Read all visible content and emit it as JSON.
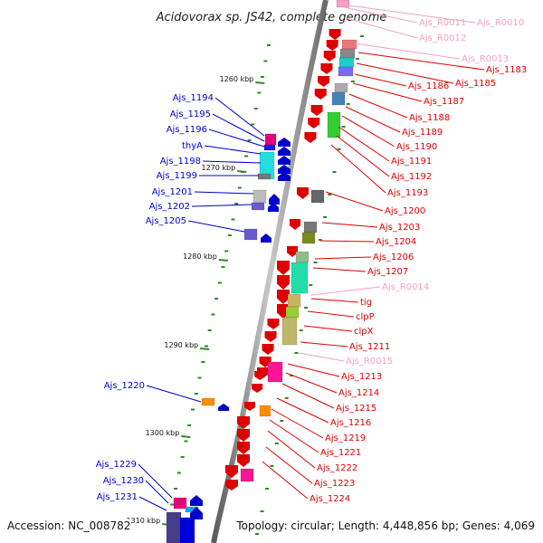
{
  "title": "Acidovorax sp. JS42, complete genome",
  "accession": "Accession: NC_008782",
  "topology": "Topology: circular; Length: 4,448,856 bp; Genes: 4,069",
  "colors": {
    "rna": "#f4a0c8",
    "forward": "#dd0000",
    "reverse": "#0000cc",
    "axis": "#8c8c8c",
    "tick": "#2e8b22"
  },
  "scale_labels": [
    "1260 kbp",
    "1270 kbp",
    "1280 kbp",
    "1290 kbp",
    "1300 kbp",
    "1310 kbp"
  ],
  "right_labels": [
    {
      "text": "Ajs_R0011",
      "kind": "rna"
    },
    {
      "text": "Ajs_R0010",
      "kind": "rna"
    },
    {
      "text": "Ajs_R0012",
      "kind": "rna"
    },
    {
      "text": "Ajs_R0013",
      "kind": "rna"
    },
    {
      "text": "Ajs_1183",
      "kind": "forward"
    },
    {
      "text": "Ajs_1185",
      "kind": "forward"
    },
    {
      "text": "Ajs_1186",
      "kind": "forward"
    },
    {
      "text": "Ajs_1187",
      "kind": "forward"
    },
    {
      "text": "Ajs_1188",
      "kind": "forward"
    },
    {
      "text": "Ajs_1189",
      "kind": "forward"
    },
    {
      "text": "Ajs_1190",
      "kind": "forward"
    },
    {
      "text": "Ajs_1191",
      "kind": "forward"
    },
    {
      "text": "Ajs_1192",
      "kind": "forward"
    },
    {
      "text": "Ajs_1193",
      "kind": "forward"
    },
    {
      "text": "Ajs_1200",
      "kind": "forward"
    },
    {
      "text": "Ajs_1203",
      "kind": "forward"
    },
    {
      "text": "Ajs_1204",
      "kind": "forward"
    },
    {
      "text": "Ajs_1206",
      "kind": "forward"
    },
    {
      "text": "Ajs_1207",
      "kind": "forward"
    },
    {
      "text": "Ajs_R0014",
      "kind": "rna"
    },
    {
      "text": "tig",
      "kind": "forward"
    },
    {
      "text": "clpP",
      "kind": "forward"
    },
    {
      "text": "clpX",
      "kind": "forward"
    },
    {
      "text": "Ajs_1211",
      "kind": "forward"
    },
    {
      "text": "Ajs_R0015",
      "kind": "rna"
    },
    {
      "text": "Ajs_1213",
      "kind": "forward"
    },
    {
      "text": "Ajs_1214",
      "kind": "forward"
    },
    {
      "text": "Ajs_1215",
      "kind": "forward"
    },
    {
      "text": "Ajs_1216",
      "kind": "forward"
    },
    {
      "text": "Ajs_1219",
      "kind": "forward"
    },
    {
      "text": "Ajs_1221",
      "kind": "forward"
    },
    {
      "text": "Ajs_1222",
      "kind": "forward"
    },
    {
      "text": "Ajs_1223",
      "kind": "forward"
    },
    {
      "text": "Ajs_1224",
      "kind": "forward"
    }
  ],
  "left_labels": [
    {
      "text": "Ajs_1194",
      "kind": "reverse"
    },
    {
      "text": "Ajs_1195",
      "kind": "reverse"
    },
    {
      "text": "Ajs_1196",
      "kind": "reverse"
    },
    {
      "text": "thyA",
      "kind": "reverse"
    },
    {
      "text": "Ajs_1198",
      "kind": "reverse"
    },
    {
      "text": "Ajs_1199",
      "kind": "reverse"
    },
    {
      "text": "Ajs_1201",
      "kind": "reverse"
    },
    {
      "text": "Ajs_1202",
      "kind": "reverse"
    },
    {
      "text": "Ajs_1205",
      "kind": "reverse"
    },
    {
      "text": "Ajs_1220",
      "kind": "reverse"
    },
    {
      "text": "Ajs_1229",
      "kind": "reverse"
    },
    {
      "text": "Ajs_1230",
      "kind": "reverse"
    },
    {
      "text": "Ajs_1231",
      "kind": "reverse"
    }
  ]
}
